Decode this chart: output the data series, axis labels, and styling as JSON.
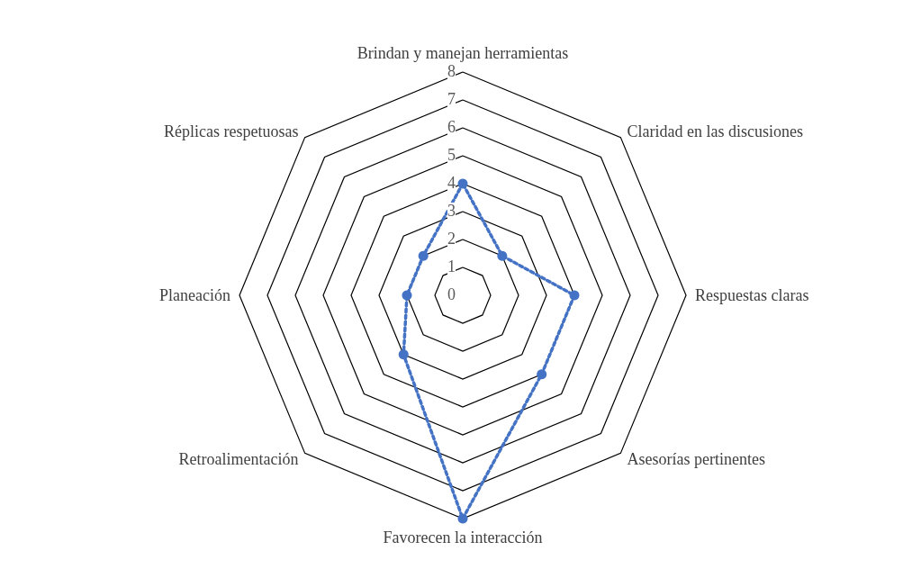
{
  "chart_data": {
    "type": "radar",
    "categories": [
      "Brindan y manejan herramientas",
      "Claridad en las discusiones",
      "Respuestas claras",
      "Asesorías pertinentes",
      "Favorecen la interacción",
      "Retroalimentación",
      "Planeación",
      "Réplicas respetuosas"
    ],
    "series": [
      {
        "color": "#4472c4",
        "values": [
          4,
          2,
          4,
          4,
          8,
          3,
          2,
          2
        ]
      }
    ],
    "ylim": [
      0,
      8
    ],
    "yticks": [
      0,
      1,
      2,
      3,
      4,
      5,
      6,
      7,
      8
    ],
    "marker": "circle",
    "line_style": "dotted",
    "grid": true
  }
}
